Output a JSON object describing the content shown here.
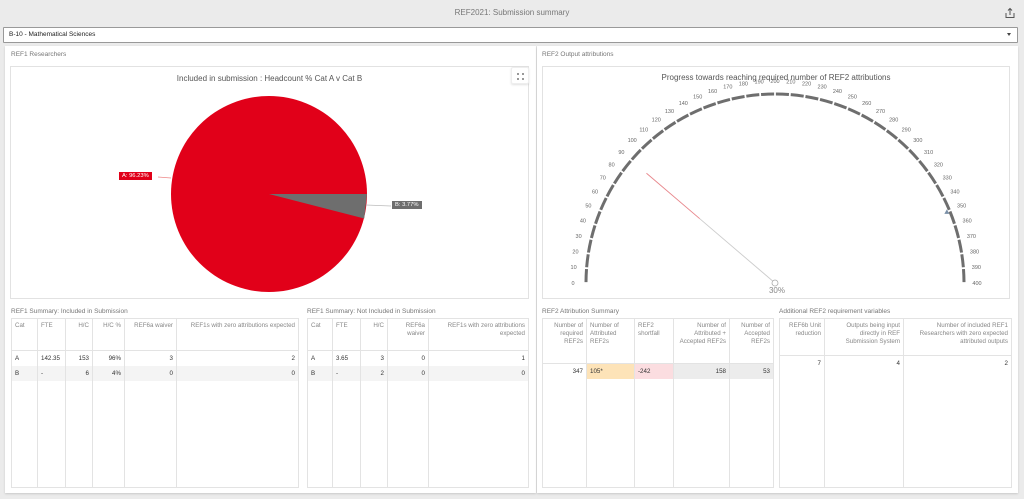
{
  "app": {
    "title": "REF2021: Submission summary",
    "share_icon": "share-export-icon"
  },
  "unit_select": {
    "value": "B-10 - Mathematical Sciences",
    "caret_icon": "caret-down-icon"
  },
  "left_panel": {
    "title": "REF1 Researchers",
    "pie": {
      "title": "Included in submission : Headcount % Cat A v Cat B",
      "label_a": "A: 96.23%",
      "label_b": "B: 3.77%",
      "expand_icon": "expand-icon"
    },
    "included_table": {
      "title": "REF1 Summary: Included in Submission",
      "headers": [
        "Cat",
        "FTE",
        "H/C",
        "H/C %",
        "REF6a waiver",
        "REF1s with zero attributions expected"
      ],
      "rows": [
        [
          "A",
          "142.35",
          "153",
          "96%",
          "3",
          "2"
        ],
        [
          "B",
          "-",
          "6",
          "4%",
          "0",
          "0"
        ]
      ]
    },
    "not_included_table": {
      "title": "REF1 Summary: Not Included in Submission",
      "headers": [
        "Cat",
        "FTE",
        "H/C",
        "REF6a waiver",
        "REF1s with zero attributions expected"
      ],
      "rows": [
        [
          "A",
          "3.65",
          "3",
          "0",
          "1"
        ],
        [
          "B",
          "-",
          "2",
          "0",
          "0"
        ]
      ]
    }
  },
  "right_panel": {
    "title": "REF2 Output attributions",
    "gauge": {
      "title": "Progress towards reaching required number of REF2 attributions",
      "value_label": "30%",
      "min": 0,
      "max": 400,
      "tick_step": 10,
      "needle_value": 105,
      "target_value": 347,
      "colors": {
        "arc": "#6e6e6e",
        "needle_red": "#e8868b",
        "needle_gray": "#cccccc",
        "target_marker": "#7a8fa6"
      }
    },
    "attribution_table": {
      "title": "REF2 Attribution Summary",
      "headers": [
        "Number of required REF2s",
        "Number of Attributed REF2s",
        "REF2 shortfall",
        "Number of Attributed + Accepted REF2s",
        "Number of Accepted REF2s"
      ],
      "row": [
        "347",
        "105*",
        "-242",
        "158",
        "53"
      ],
      "cell_colors": {
        "attributed": "#fde3b8",
        "shortfall": "#fbdde0",
        "accepted": "#ececec"
      }
    },
    "additional_table": {
      "title": "Additional REF2 requirement variables",
      "headers": [
        "REF6b Unit reduction",
        "Outputs being input directly in REF Submission System",
        "Number of included REF1 Researchers with zero expected attributed outputs"
      ],
      "row": [
        "7",
        "4",
        "2"
      ]
    }
  },
  "chart_data": [
    {
      "type": "pie",
      "title": "Included in submission : Headcount % Cat A v Cat B",
      "categories": [
        "A",
        "B"
      ],
      "values": [
        96.23,
        3.77
      ],
      "colors": [
        "#e10019",
        "#6e6e6e"
      ],
      "legend": "none (data labels)"
    },
    {
      "type": "gauge",
      "title": "Progress towards reaching required number of REF2 attributions",
      "range": [
        0,
        400
      ],
      "tick_labels": [
        0,
        10,
        20,
        30,
        40,
        50,
        60,
        70,
        80,
        90,
        100,
        110,
        120,
        130,
        140,
        150,
        160,
        170,
        180,
        190,
        200,
        210,
        220,
        230,
        240,
        250,
        260,
        270,
        280,
        290,
        300,
        310,
        320,
        330,
        340,
        350,
        360,
        370,
        380,
        390,
        400
      ],
      "value": 105,
      "target": 347,
      "value_label": "30%"
    }
  ]
}
